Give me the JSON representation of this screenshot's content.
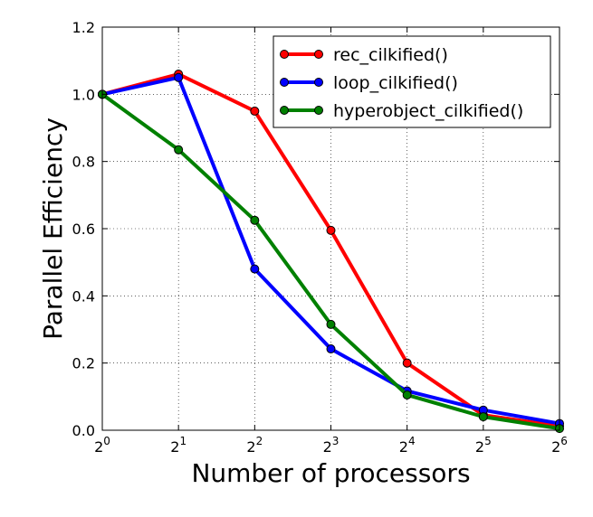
{
  "chart_data": {
    "type": "line",
    "title": "",
    "xlabel": "Number of processors",
    "ylabel": "Parallel Efficiency",
    "x_scale": "log2",
    "x": [
      1,
      2,
      4,
      8,
      16,
      32,
      64
    ],
    "x_tick_labels": [
      {
        "base": "2",
        "exp": "0"
      },
      {
        "base": "2",
        "exp": "1"
      },
      {
        "base": "2",
        "exp": "2"
      },
      {
        "base": "2",
        "exp": "3"
      },
      {
        "base": "2",
        "exp": "4"
      },
      {
        "base": "2",
        "exp": "5"
      },
      {
        "base": "2",
        "exp": "6"
      }
    ],
    "y_ticks": [
      "0.0",
      "0.2",
      "0.4",
      "0.6",
      "0.8",
      "1.0",
      "1.2"
    ],
    "xlim": [
      1,
      64
    ],
    "ylim": [
      0,
      1.2
    ],
    "grid": true,
    "legend_position": "top-right",
    "series": [
      {
        "name": "rec_cilkified()",
        "color": "#ff0000",
        "values": [
          1.0,
          1.06,
          0.95,
          0.595,
          0.2,
          0.045,
          0.012
        ]
      },
      {
        "name": "loop_cilkified()",
        "color": "#0000ff",
        "values": [
          1.0,
          1.05,
          0.48,
          0.242,
          0.117,
          0.06,
          0.02
        ]
      },
      {
        "name": "hyperobject_cilkified()",
        "color": "#008000",
        "values": [
          1.0,
          0.835,
          0.625,
          0.315,
          0.105,
          0.04,
          0.005
        ]
      }
    ]
  }
}
